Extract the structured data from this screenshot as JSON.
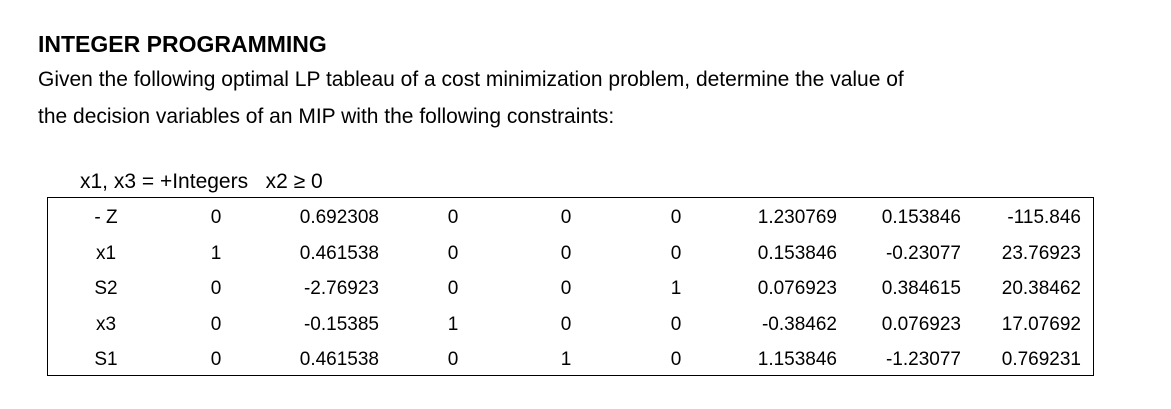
{
  "header": {
    "title": "INTEGER PROGRAMMING",
    "lines": [
      "Given the following optimal LP tableau of a cost minimization problem, determine the value of",
      "the decision variables of an MIP with the following constraints:"
    ]
  },
  "constraints": {
    "integers": "x1, x3 = +Integers",
    "nonneg": "x2 ≥ 0"
  },
  "table": {
    "rows": [
      [
        "- Z",
        "0",
        "0.692308",
        "0",
        "0",
        "0",
        "1.230769",
        "0.153846",
        "-115.846"
      ],
      [
        "x1",
        "1",
        "0.461538",
        "0",
        "0",
        "0",
        "0.153846",
        "-0.23077",
        "23.76923"
      ],
      [
        "S2",
        "0",
        "-2.76923",
        "0",
        "0",
        "1",
        "0.076923",
        "0.384615",
        "20.38462"
      ],
      [
        "x3",
        "0",
        "-0.15385",
        "1",
        "0",
        "0",
        "-0.38462",
        "0.076923",
        "17.07692"
      ],
      [
        "S1",
        "0",
        "0.461538",
        "0",
        "1",
        "0",
        "1.153846",
        "-1.23077",
        "0.769231"
      ]
    ]
  }
}
